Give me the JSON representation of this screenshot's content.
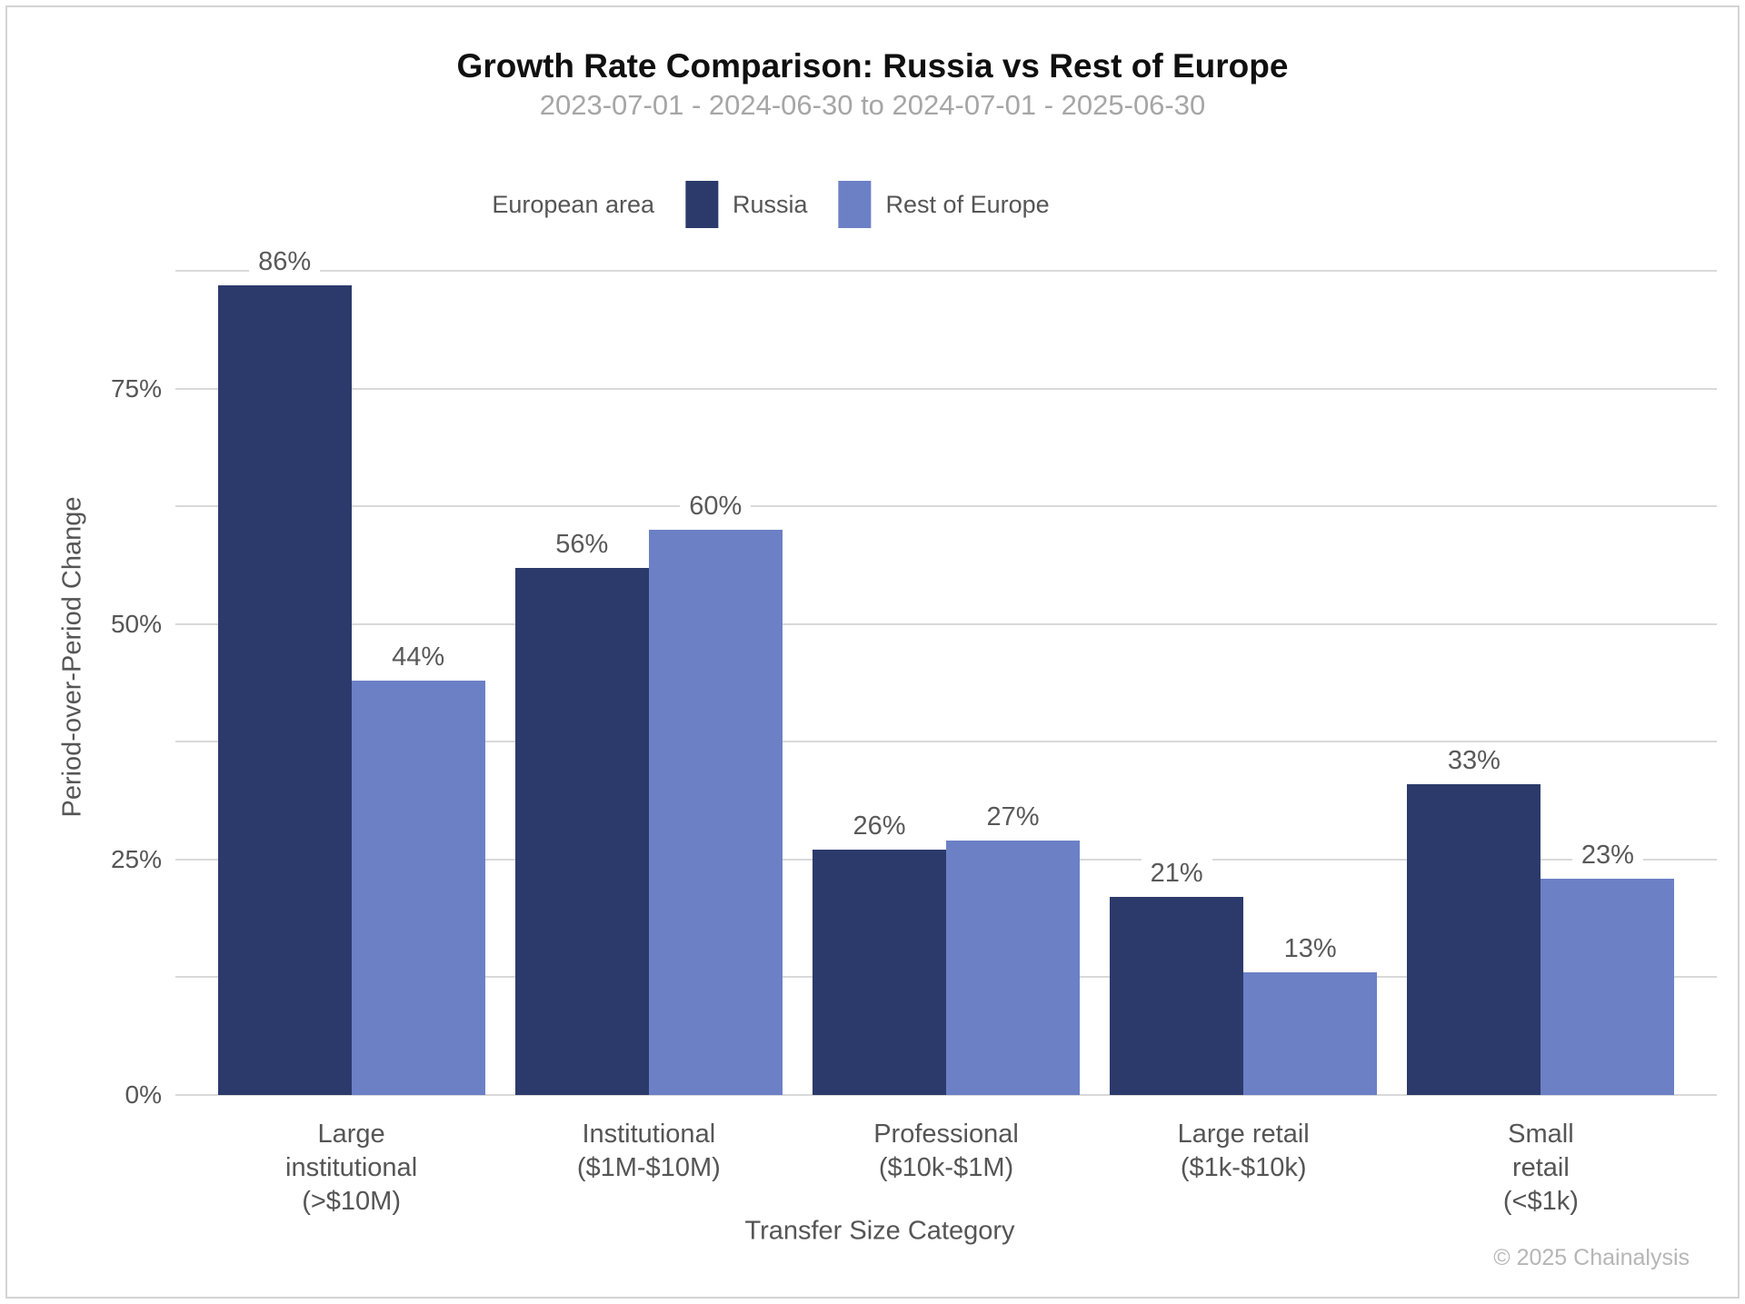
{
  "page": {
    "footer": "© 2025 Chainalysis"
  },
  "colors": {
    "russia": "#2C3A6B",
    "rest_of_europe": "#6C80C6",
    "gridline": "#D9D9D9",
    "title_text": "#101010",
    "subtitle_text": "#A6A6A6",
    "axis_text": "#555555",
    "value_label_text": "#595959",
    "footer_text": "#B6B6B6",
    "card_border": "#D4D4D4"
  },
  "chart_data": {
    "type": "bar",
    "title": "Growth Rate Comparison: Russia vs Rest of Europe",
    "subtitle": "2023-07-01 - 2024-06-30 to 2024-07-01 - 2025-06-30",
    "xlabel": "Transfer Size Category",
    "ylabel": "Period-over-Period Change",
    "legend": {
      "title": "European area",
      "position": "top",
      "entries": [
        "Russia",
        "Rest of Europe"
      ]
    },
    "categories": [
      "Large institutional (>$10M)",
      "Institutional ($1M-$10M)",
      "Professional ($10k-$1M)",
      "Large retail ($1k-$10k)",
      "Small retail (<$1k)"
    ],
    "category_display_lines": [
      [
        "Large",
        "institutional",
        "(>$10M)"
      ],
      [
        "Institutional",
        "($1M-$10M)"
      ],
      [
        "Professional",
        "($10k-$1M)"
      ],
      [
        "Large retail",
        "($1k-$10k)"
      ],
      [
        "Small",
        "retail",
        "(<$1k)"
      ]
    ],
    "series": [
      {
        "name": "Russia",
        "color": "#2C3A6B",
        "values": [
          86,
          56,
          26,
          21,
          33
        ],
        "value_labels": [
          "86%",
          "56%",
          "26%",
          "21%",
          "33%"
        ]
      },
      {
        "name": "Rest of Europe",
        "color": "#6C80C6",
        "values": [
          44,
          60,
          27,
          13,
          23
        ],
        "value_labels": [
          "44%",
          "60%",
          "27%",
          "13%",
          "23%"
        ]
      }
    ],
    "y_axis": {
      "ylim": [
        0,
        87.5
      ],
      "tick_values": [
        0,
        25,
        50,
        75
      ],
      "tick_labels": [
        "0%",
        "25%",
        "50%",
        "75%"
      ],
      "gridline_step": 12.5,
      "grid": true
    }
  }
}
